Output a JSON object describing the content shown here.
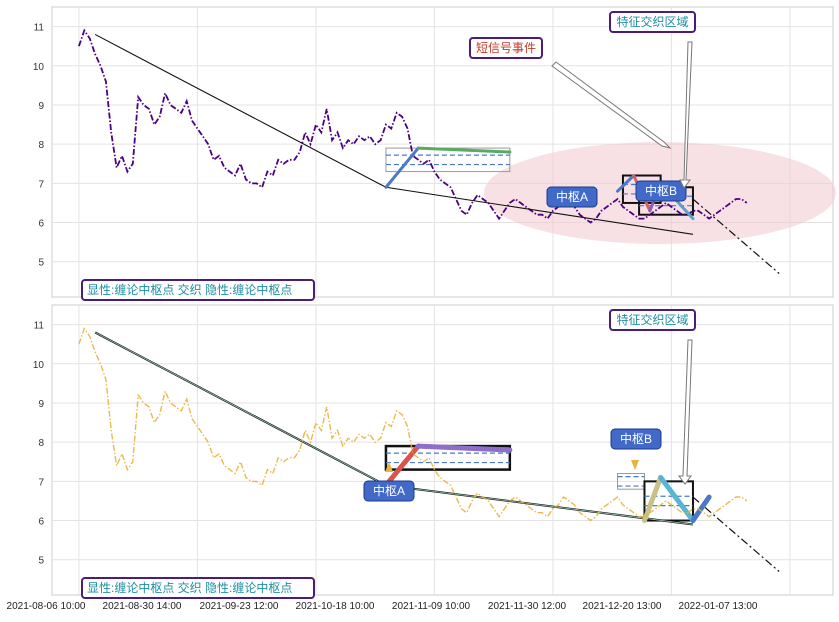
{
  "chart_data": [
    {
      "type": "line",
      "panel": "top",
      "ylim": [
        4.1,
        11.5
      ],
      "yticks": [
        5,
        6,
        7,
        8,
        9,
        10,
        11
      ],
      "grid": true,
      "legend_text": "显性:缠论中枢点 交织 隐性:缠论中枢点",
      "price_color": "#4b0082",
      "price_style": "dash-dot",
      "series": [
        {
          "role": "price",
          "x": [
            0,
            1,
            2,
            3,
            4,
            5,
            6,
            7,
            8,
            9,
            10,
            11,
            12,
            13,
            14,
            15,
            16,
            17,
            18,
            19,
            20,
            21,
            22,
            23,
            24,
            25,
            26,
            27,
            28,
            29,
            30,
            31,
            32,
            33,
            34,
            35,
            36,
            37,
            38,
            39,
            40,
            41,
            42,
            43,
            44,
            45,
            46,
            47,
            48,
            49,
            50,
            51,
            52,
            53,
            54,
            55,
            56,
            57,
            58,
            59,
            60,
            61,
            62,
            63,
            64,
            65,
            66,
            67,
            68,
            69,
            70,
            71,
            72,
            73,
            74,
            75,
            76,
            77,
            78,
            79,
            80,
            81,
            82,
            83,
            84,
            85,
            86,
            87,
            88,
            89,
            90,
            91,
            92,
            93,
            94,
            95,
            96,
            97,
            98,
            99,
            100,
            101,
            102,
            103,
            104,
            105,
            106,
            107,
            108,
            109,
            110,
            111,
            112,
            113,
            114,
            115,
            116,
            117,
            118,
            119,
            120,
            121,
            122,
            123,
            124
          ],
          "y": [
            10.5,
            10.9,
            10.7,
            10.3,
            10.0,
            9.6,
            8.3,
            7.4,
            7.7,
            7.3,
            7.5,
            9.2,
            9.0,
            8.9,
            8.5,
            8.7,
            9.3,
            9.0,
            8.9,
            8.8,
            9.1,
            8.6,
            8.4,
            8.2,
            8.0,
            7.6,
            7.7,
            7.4,
            7.3,
            7.2,
            7.5,
            7.1,
            7.0,
            7.0,
            6.9,
            7.3,
            7.2,
            7.6,
            7.5,
            7.6,
            7.6,
            7.8,
            8.3,
            8.0,
            8.5,
            8.3,
            8.9,
            8.1,
            8.3,
            7.9,
            8.1,
            8.0,
            8.2,
            8.1,
            8.2,
            8.0,
            8.1,
            8.5,
            8.4,
            8.8,
            8.7,
            8.4,
            7.7,
            7.6,
            7.5,
            7.6,
            7.3,
            7.1,
            7.0,
            6.9,
            6.6,
            6.3,
            6.2,
            6.5,
            6.7,
            6.6,
            6.5,
            6.3,
            6.1,
            6.3,
            6.5,
            6.6,
            6.5,
            6.4,
            6.3,
            6.2,
            6.2,
            6.1,
            6.3,
            6.4,
            6.6,
            6.5,
            6.4,
            6.2,
            6.1,
            6.0,
            6.1,
            6.3,
            6.4,
            6.5,
            6.6,
            6.4,
            6.3,
            6.2,
            6.1,
            6.1,
            6.2,
            6.3,
            6.4,
            6.5,
            6.4,
            6.3,
            6.2,
            6.2,
            6.3,
            6.3,
            6.2,
            6.1,
            6.2,
            6.3,
            6.4,
            6.5,
            6.6,
            6.6,
            6.5
          ]
        },
        {
          "role": "trend_line",
          "x": [
            3,
            57,
            114
          ],
          "y": [
            10.8,
            6.9,
            5.7
          ]
        },
        {
          "role": "projection_line",
          "x": [
            114,
            130
          ],
          "y": [
            6.6,
            4.7
          ]
        },
        {
          "role": "pivot_segments",
          "segments": [
            {
              "x": [
                57,
                63
              ],
              "y": [
                6.9,
                7.9
              ],
              "color": "#4c78c8"
            },
            {
              "x": [
                63,
                80
              ],
              "y": [
                7.9,
                7.8
              ],
              "color": "#5aab61"
            },
            {
              "x": [
                100,
                103
              ],
              "y": [
                6.8,
                7.2
              ],
              "color": "#4c78c8"
            },
            {
              "x": [
                103,
                106
              ],
              "y": [
                7.2,
                6.3
              ],
              "color": "#d65f5f"
            },
            {
              "x": [
                106,
                108
              ],
              "y": [
                6.3,
                7.0
              ],
              "color": "#8b5cb8"
            },
            {
              "x": [
                108,
                114
              ],
              "y": [
                7.0,
                6.1
              ],
              "color": "#5aa0c8"
            }
          ]
        }
      ],
      "annotations": [
        {
          "text": "特征交织区域",
          "kind": "label",
          "color": "#1f8ea3"
        },
        {
          "text": "短信号事件",
          "kind": "label",
          "color": "#c0392b"
        },
        {
          "text": "中枢A",
          "kind": "callout"
        },
        {
          "text": "中枢B",
          "kind": "callout"
        }
      ]
    },
    {
      "type": "line",
      "panel": "bottom",
      "ylim": [
        4.1,
        11.5
      ],
      "yticks": [
        5,
        6,
        7,
        8,
        9,
        10,
        11
      ],
      "grid": true,
      "legend_text": "显性:缠论中枢点 交织 隐性:缠论中枢点",
      "price_color": "#e8b33a",
      "price_style": "dash-dot",
      "x_tick_labels": [
        "2021-08-06 10:00",
        "2021-08-30 14:00",
        "2021-09-23 12:00",
        "2021-10-18 10:00",
        "2021-11-09 10:00",
        "2021-11-30 12:00",
        "2021-12-20 13:00",
        "2022-01-07 13:00"
      ],
      "series": [
        {
          "role": "trend_line",
          "x": [
            3,
            57,
            114
          ],
          "y": [
            10.8,
            6.9,
            5.9
          ]
        },
        {
          "role": "projection_line",
          "x": [
            114,
            130
          ],
          "y": [
            6.6,
            4.7
          ]
        },
        {
          "role": "pivot_segments",
          "segments": [
            {
              "x": [
                57,
                63
              ],
              "y": [
                6.9,
                7.9
              ],
              "color": "#d9534f"
            },
            {
              "x": [
                63,
                80
              ],
              "y": [
                7.9,
                7.8
              ],
              "color": "#8b6fc9"
            },
            {
              "x": [
                105,
                108
              ],
              "y": [
                6.0,
                7.1
              ],
              "color": "#c9c08a"
            },
            {
              "x": [
                108,
                114
              ],
              "y": [
                7.1,
                6.0
              ],
              "color": "#5ab4d6"
            },
            {
              "x": [
                114,
                117
              ],
              "y": [
                6.0,
                6.6
              ],
              "color": "#4c78c8"
            }
          ]
        }
      ],
      "annotations": [
        {
          "text": "特征交织区域",
          "kind": "label",
          "color": "#1f8ea3"
        },
        {
          "text": "中枢A",
          "kind": "callout"
        },
        {
          "text": "中枢B",
          "kind": "callout"
        }
      ]
    }
  ]
}
